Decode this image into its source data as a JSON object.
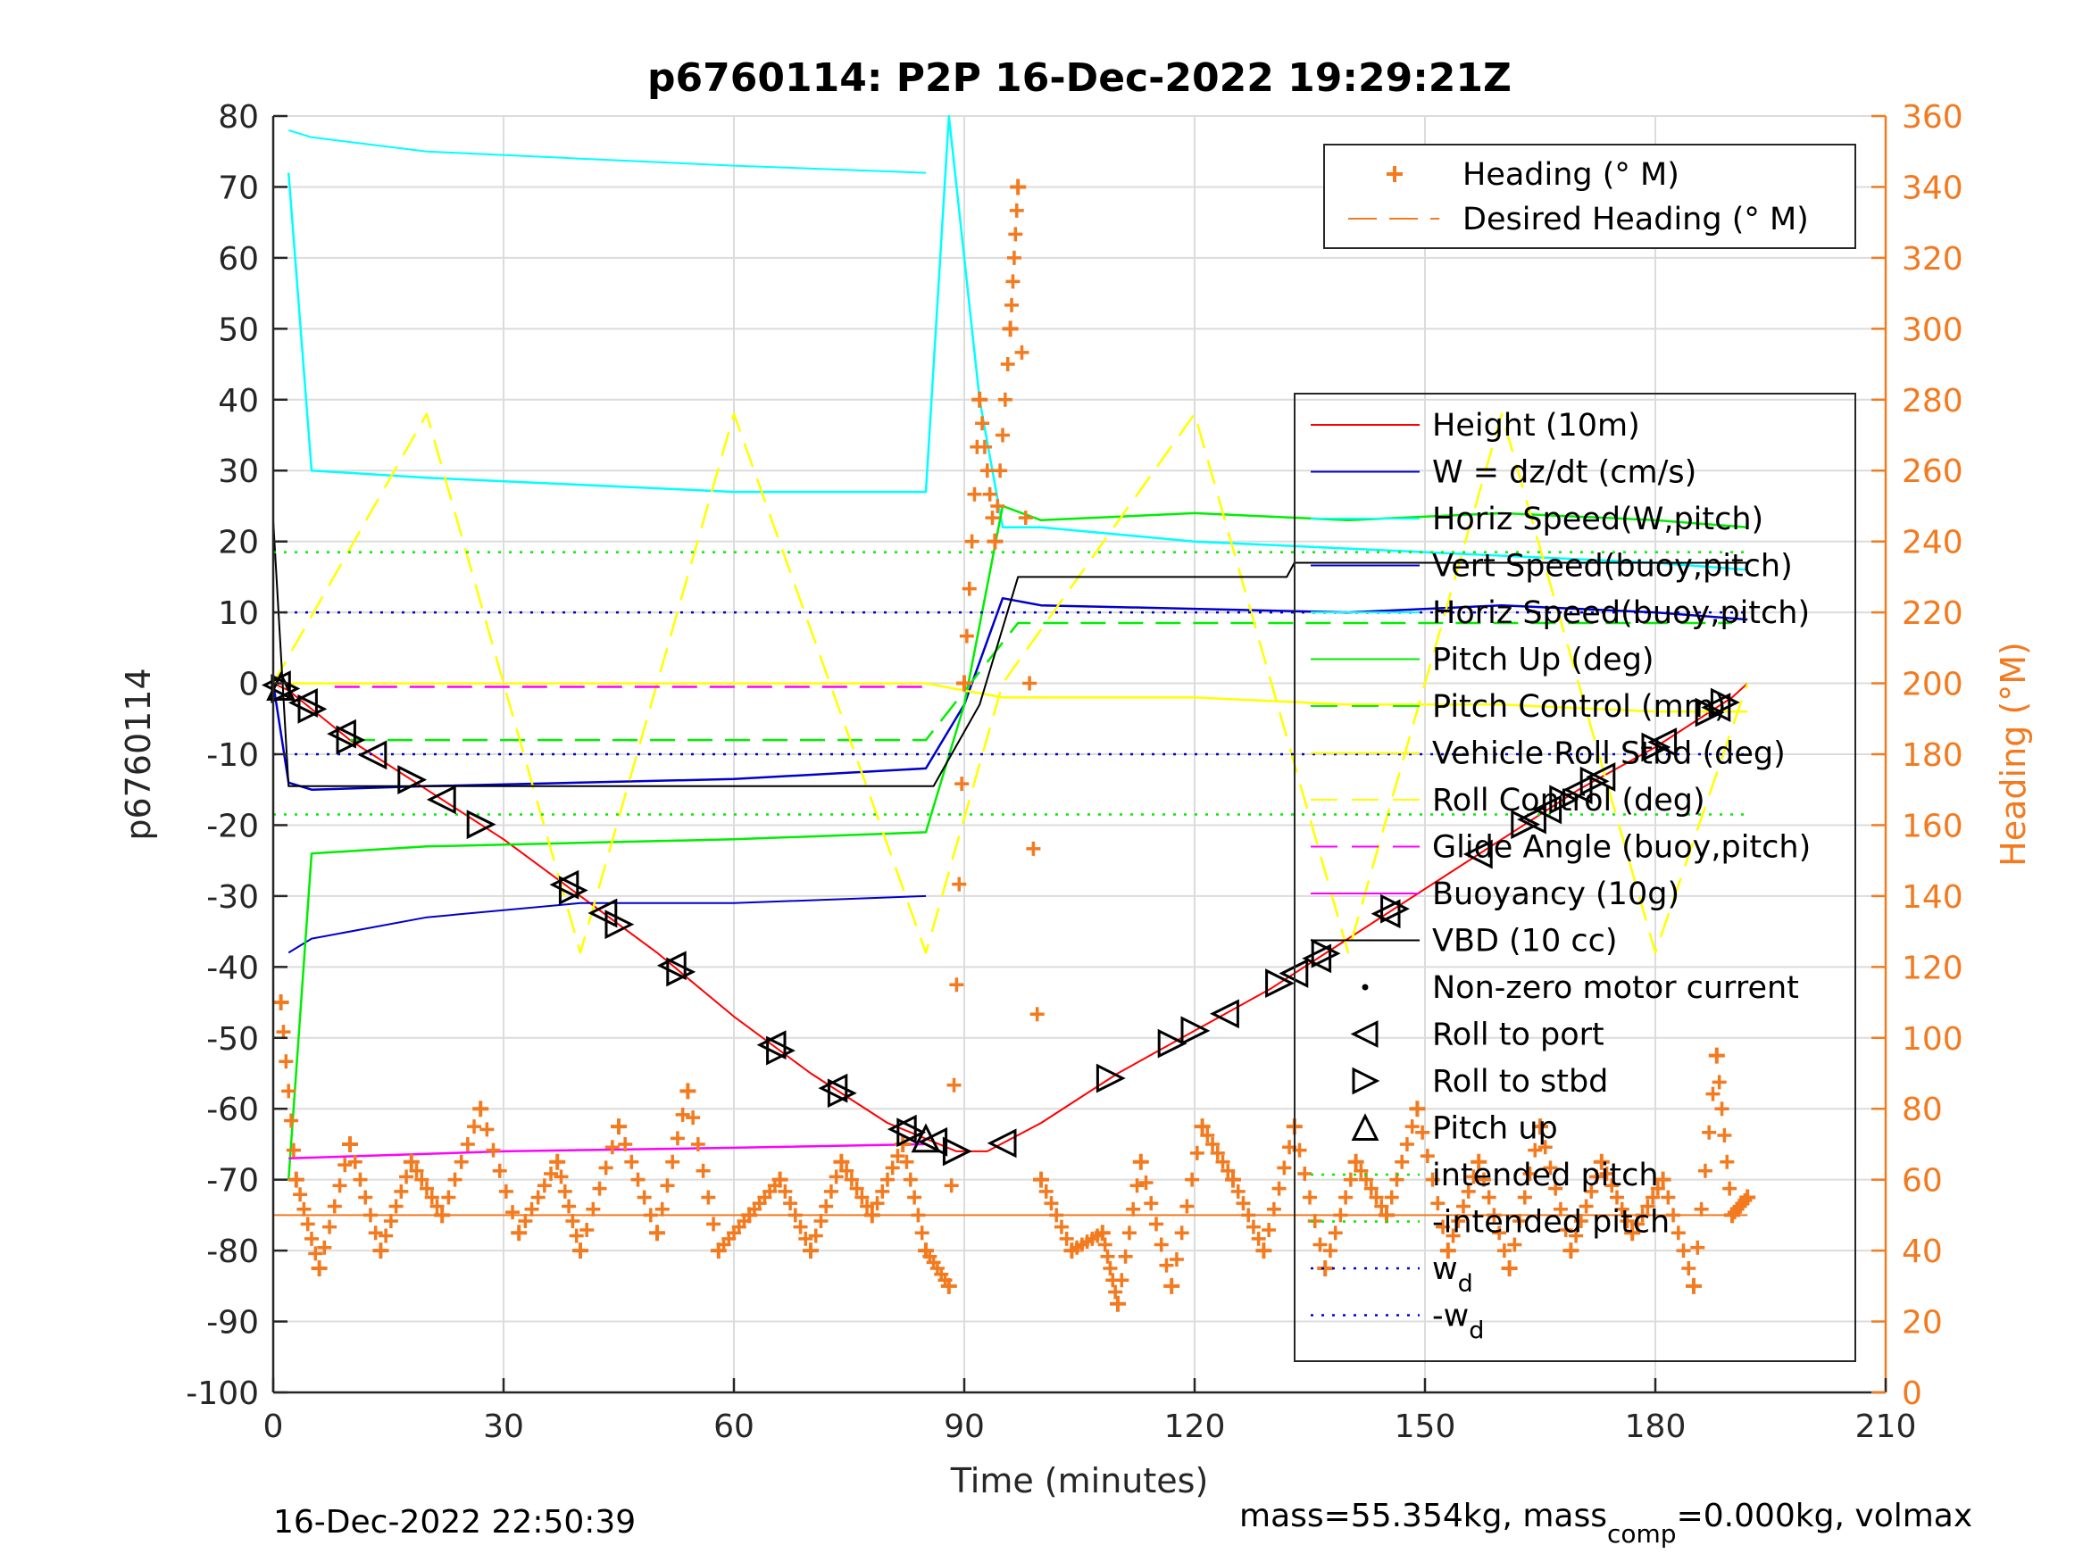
{
  "chart_data": {
    "type": "line",
    "title": "p6760114: P2P 16-Dec-2022 19:29:21Z",
    "xlabel": "Time (minutes)",
    "ylabel_left": "p6760114",
    "ylabel_right": "Heading (°M)",
    "xlim": [
      0,
      210
    ],
    "ylim_left": [
      -100,
      80
    ],
    "ylim_right": [
      0,
      360
    ],
    "x_ticks": [
      "0",
      "30",
      "60",
      "90",
      "120",
      "150",
      "180",
      "210"
    ],
    "y_ticks_left": [
      "80",
      "70",
      "60",
      "50",
      "40",
      "30",
      "20",
      "10",
      "0",
      "-10",
      "-20",
      "-30",
      "-40",
      "-50",
      "-60",
      "-70",
      "-80",
      "-90",
      "-100"
    ],
    "y_ticks_right": [
      "360",
      "340",
      "320",
      "300",
      "280",
      "260",
      "240",
      "220",
      "200",
      "180",
      "160",
      "140",
      "120",
      "100",
      "80",
      "60",
      "40",
      "20",
      "0"
    ],
    "grid": true,
    "colors": {
      "height": "#ff0000",
      "w": "#0000cc",
      "horiz_speed": "#00ffff",
      "pitch": "#00ee00",
      "roll": "#ffff00",
      "glide": "#ff00ff",
      "vbd": "#000000",
      "heading": "#f37a1f"
    },
    "series": [
      {
        "name": "Height (10m)",
        "x": [
          0,
          2,
          10,
          20,
          30,
          40,
          50,
          60,
          70,
          80,
          89,
          93,
          100,
          110,
          120,
          130,
          140,
          150,
          160,
          170,
          180,
          190,
          192
        ],
        "y": [
          0,
          -1,
          -8,
          -15,
          -22,
          -30,
          -38,
          -47,
          -55,
          -62,
          -66,
          -66,
          -62,
          -55,
          -49,
          -43,
          -36,
          -29,
          -22,
          -15,
          -9,
          -2,
          0
        ]
      },
      {
        "name": "W = dz/dt (cm/s)",
        "x": [
          0,
          2,
          5,
          20,
          40,
          60,
          85,
          90,
          95,
          100,
          120,
          140,
          160,
          180,
          192
        ],
        "y": [
          0,
          -14,
          -15,
          -14.5,
          -14,
          -13.5,
          -12,
          -3,
          12,
          11,
          10.5,
          10,
          11,
          10,
          9
        ]
      },
      {
        "name": "Vert Speed(buoy,pitch)",
        "x": [
          2,
          5,
          20,
          40,
          60,
          85
        ],
        "y": [
          -38,
          -36,
          -33,
          -31,
          -31,
          -30
        ]
      },
      {
        "name": "Horiz Speed(W,pitch)",
        "x": [
          2,
          5,
          20,
          40,
          60,
          85,
          88,
          92,
          95,
          100,
          120,
          140,
          160,
          180,
          192
        ],
        "y": [
          72,
          30,
          29,
          28,
          27,
          27,
          80,
          40,
          22,
          22,
          20,
          19,
          18,
          17,
          16
        ]
      },
      {
        "name": "Horiz Speed(buoy,pitch)",
        "x": [
          2,
          5,
          20,
          40,
          60,
          85
        ],
        "y": [
          78,
          77,
          75,
          74,
          73,
          72
        ]
      },
      {
        "name": "Pitch Up (deg)",
        "x": [
          2,
          5,
          20,
          40,
          60,
          85,
          90,
          95,
          100,
          120,
          140,
          160,
          180,
          192
        ],
        "y": [
          -70,
          -24,
          -23,
          -22.5,
          -22,
          -21,
          -3,
          25,
          23,
          24,
          23,
          24,
          23,
          22
        ]
      },
      {
        "name": "Pitch Control (mm)",
        "x": [
          10,
          85,
          97,
          190
        ],
        "y": [
          -8,
          -8,
          8.5,
          8.5
        ]
      },
      {
        "name": "Vehicle Roll Stbd (deg)",
        "x": [
          0,
          20,
          40,
          60,
          85,
          95,
          120,
          140,
          160,
          180,
          192
        ],
        "y": [
          0,
          0,
          0,
          0,
          0,
          -2,
          -2,
          -3,
          -3,
          -4,
          -4
        ]
      },
      {
        "name": "Roll Control (deg)",
        "x": [
          0,
          20,
          40,
          60,
          85,
          95,
          120,
          140,
          160,
          180,
          192
        ],
        "y": [
          0,
          38,
          -38,
          38,
          -38,
          0,
          38,
          -38,
          38,
          -38,
          0
        ]
      },
      {
        "name": "Glide Angle (buoy,pitch)",
        "x": [
          8,
          85
        ],
        "y": [
          -0.5,
          -0.5
        ]
      },
      {
        "name": "Buoyancy (10g)",
        "x": [
          2,
          30,
          60,
          85
        ],
        "y": [
          -67,
          -66,
          -65.5,
          -65
        ]
      },
      {
        "name": "VBD (10 cc)",
        "x": [
          0,
          2,
          86,
          92,
          97,
          132,
          133,
          192
        ],
        "y": [
          23,
          -14.5,
          -14.5,
          -3,
          15,
          15,
          17,
          17
        ]
      },
      {
        "name": "intended pitch",
        "x": [
          0,
          192
        ],
        "y": [
          18.5,
          18.5
        ]
      },
      {
        "name": "-intended pitch",
        "x": [
          0,
          192
        ],
        "y": [
          -18.5,
          -18.5
        ]
      },
      {
        "name": "w_d",
        "x": [
          0,
          192
        ],
        "y": [
          10,
          10
        ]
      },
      {
        "name": "-w_d",
        "x": [
          0,
          192
        ],
        "y": [
          -10,
          -10
        ]
      },
      {
        "name": "Heading (° M)",
        "axis": "right",
        "x": [
          1,
          3,
          6,
          10,
          14,
          18,
          22,
          27,
          32,
          37,
          40,
          45,
          50,
          54,
          58,
          62,
          66,
          70,
          74,
          78,
          82,
          85,
          88,
          90,
          92,
          94,
          96,
          97,
          100,
          104,
          108,
          110,
          113,
          117,
          121,
          125,
          129,
          133,
          137,
          141,
          145,
          149,
          153,
          157,
          161,
          165,
          169,
          173,
          177,
          181,
          185,
          188,
          190,
          192
        ],
        "y": [
          110,
          60,
          35,
          70,
          40,
          65,
          50,
          80,
          45,
          65,
          40,
          75,
          45,
          85,
          40,
          50,
          60,
          40,
          65,
          50,
          70,
          40,
          30,
          200,
          280,
          240,
          300,
          340,
          60,
          40,
          45,
          25,
          65,
          30,
          75,
          60,
          40,
          75,
          35,
          65,
          50,
          80,
          40,
          65,
          35,
          75,
          40,
          65,
          45,
          60,
          30,
          95,
          50,
          55
        ]
      },
      {
        "name": "Desired Heading (° M)",
        "axis": "right",
        "x": [
          0,
          192
        ],
        "y": [
          50,
          50
        ]
      }
    ],
    "markers": {
      "roll_to_port": [
        0.5,
        4,
        9,
        13,
        22,
        38,
        43,
        52,
        65,
        73,
        82,
        86,
        95,
        124,
        133,
        136,
        145,
        157,
        164,
        166,
        170,
        173,
        181,
        188
      ],
      "roll_to_stbd": [
        1.5,
        5,
        10,
        18,
        27,
        39,
        45,
        53,
        66,
        74,
        83,
        89,
        109,
        117,
        120,
        131,
        137,
        146,
        163,
        168,
        172,
        180,
        187,
        189
      ],
      "pitch_up": [
        1,
        85
      ]
    },
    "legends": {
      "upper_right": [
        "Heading (° M)",
        "Desired Heading (° M)"
      ],
      "main": [
        "Height (10m)",
        "W = dz/dt (cm/s)",
        "Horiz Speed(W,pitch)",
        "Vert Speed(buoy,pitch)",
        "Horiz Speed(buoy,pitch)",
        "Pitch Up (deg)",
        "Pitch Control (mm)",
        "Vehicle Roll Stbd (deg)",
        "Roll Control (deg)",
        "Glide Angle (buoy,pitch)",
        "Buoyancy (10g)",
        "VBD (10 cc)",
        "Non-zero motor current",
        "Roll to port",
        "Roll to stbd",
        "Pitch up",
        "intended pitch",
        "-intended pitch",
        "w",
        "-w"
      ],
      "subscript_d": "d"
    }
  },
  "footer": {
    "timestamp": "16-Dec-2022 22:50:39",
    "mass_text_a": "mass=55.354kg, mass",
    "mass_sub": "comp",
    "mass_text_b": "=0.000kg, volmax"
  }
}
